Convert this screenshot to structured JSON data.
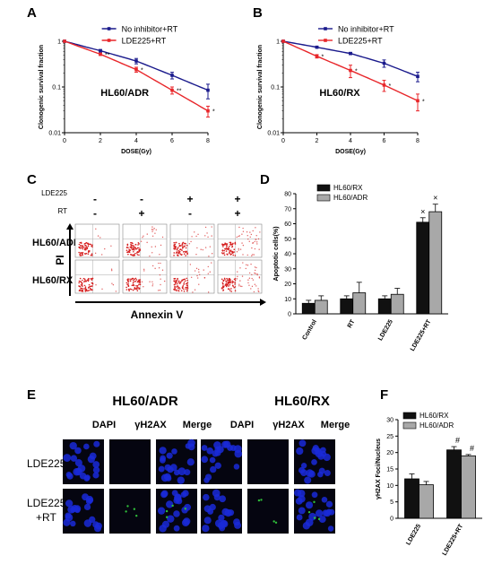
{
  "colors": {
    "no_inhibitor": "#1a1a8c",
    "lde225": "#e8262a",
    "hl60rx_bar": "#111111",
    "hl60adr_bar": "#a8a8a8",
    "cell_blue": "#1a2ad8",
    "cell_green": "#2fbf3a",
    "dot_red": "#d62020"
  },
  "panels": {
    "A": "A",
    "B": "B",
    "C": "C",
    "D": "D",
    "E": "E",
    "F": "F"
  },
  "chart_data": [
    {
      "panel": "A",
      "type": "line",
      "xlabel": "DOSE(Gy)",
      "ylabel": "Clonogenic survival fraction",
      "inner_label": "HL60/ADR",
      "log_y": true,
      "ylim": [
        0.01,
        1
      ],
      "xlim": [
        0,
        8
      ],
      "x_ticks": [
        "0",
        "2",
        "4",
        "6",
        "8"
      ],
      "y_ticks": [
        "1",
        "0.1",
        "0.01"
      ],
      "legend_position": "top-right",
      "series": [
        {
          "name": "No inhibitor+RT",
          "x": [
            0,
            2,
            4,
            6,
            8
          ],
          "y": [
            1.0,
            0.62,
            0.37,
            0.18,
            0.085
          ],
          "err": [
            0,
            0.04,
            0.05,
            0.03,
            0.03
          ],
          "stars": []
        },
        {
          "name": "LDE225+RT",
          "x": [
            0,
            2,
            4,
            6,
            8
          ],
          "y": [
            1.0,
            0.52,
            0.24,
            0.085,
            0.03
          ],
          "err": [
            0,
            0.03,
            0.03,
            0.015,
            0.008
          ],
          "stars": [
            "",
            "**",
            "*",
            "**",
            "*"
          ]
        }
      ]
    },
    {
      "panel": "B",
      "type": "line",
      "xlabel": "DOSE(Gy)",
      "ylabel": "Clonogenic survival fraction",
      "inner_label": "HL60/RX",
      "log_y": true,
      "ylim": [
        0.01,
        1
      ],
      "xlim": [
        0,
        8
      ],
      "x_ticks": [
        "0",
        "2",
        "4",
        "6",
        "8"
      ],
      "y_ticks": [
        "1",
        "0.1",
        "0.01"
      ],
      "legend_position": "top-right",
      "series": [
        {
          "name": "No inhibitor+RT",
          "x": [
            0,
            2,
            4,
            6,
            8
          ],
          "y": [
            1.0,
            0.74,
            0.54,
            0.33,
            0.17
          ],
          "err": [
            0,
            0.03,
            0.03,
            0.06,
            0.04
          ],
          "stars": []
        },
        {
          "name": "LDE225+RT",
          "x": [
            0,
            2,
            4,
            6,
            8
          ],
          "y": [
            1.0,
            0.47,
            0.23,
            0.11,
            0.05
          ],
          "err": [
            0,
            0.04,
            0.07,
            0.03,
            0.02
          ],
          "stars": [
            "",
            "*",
            "*",
            "*",
            "*"
          ]
        }
      ]
    },
    {
      "panel": "D",
      "type": "bar",
      "ylabel": "Apoptotic cells(%)",
      "ylim": [
        0,
        80
      ],
      "y_ticks": [
        "0",
        "10",
        "20",
        "30",
        "40",
        "50",
        "60",
        "70",
        "80"
      ],
      "categories": [
        "Control",
        "RT",
        "LDE225",
        "LDE225+RT"
      ],
      "legend_position": "top-left",
      "series": [
        {
          "name": "HL60/RX",
          "values": [
            7,
            10,
            10,
            61
          ],
          "err": [
            2,
            2,
            2,
            3
          ]
        },
        {
          "name": "HL60/ADR",
          "values": [
            9,
            14,
            13,
            68
          ],
          "err": [
            3,
            7,
            4,
            5
          ]
        }
      ],
      "markers": [
        "",
        "",
        "",
        "×"
      ]
    },
    {
      "panel": "F",
      "type": "bar",
      "ylabel": "γH2AX Foci/Nucleus",
      "ylim": [
        0,
        30
      ],
      "y_ticks": [
        "0",
        "5",
        "10",
        "15",
        "20",
        "25",
        "30"
      ],
      "categories": [
        "LDE225",
        "LDE225+RT"
      ],
      "legend_position": "top-left",
      "series": [
        {
          "name": "HL60/RX",
          "values": [
            12,
            20.8
          ],
          "err": [
            1.5,
            1
          ]
        },
        {
          "name": "HL60/ADR",
          "values": [
            10.2,
            19
          ],
          "err": [
            1,
            0.4
          ]
        }
      ],
      "markers": [
        "",
        "#"
      ]
    }
  ],
  "panel_c": {
    "row_header_lde": "LDE225",
    "row_header_rt": "RT",
    "signs_lde": [
      "-",
      "-",
      "+",
      "+"
    ],
    "signs_rt": [
      "-",
      "+",
      "-",
      "+"
    ],
    "rows": [
      "HL60/ADR",
      "HL60/RX"
    ],
    "x_axis_label": "Annexin V",
    "y_axis_label": "PI"
  },
  "panel_e": {
    "group_titles": [
      "HL60/ADR",
      "HL60/RX"
    ],
    "channels": [
      "DAPI",
      "γH2AX",
      "Merge"
    ],
    "rows": [
      "LDE225",
      "LDE225\n+RT"
    ]
  }
}
